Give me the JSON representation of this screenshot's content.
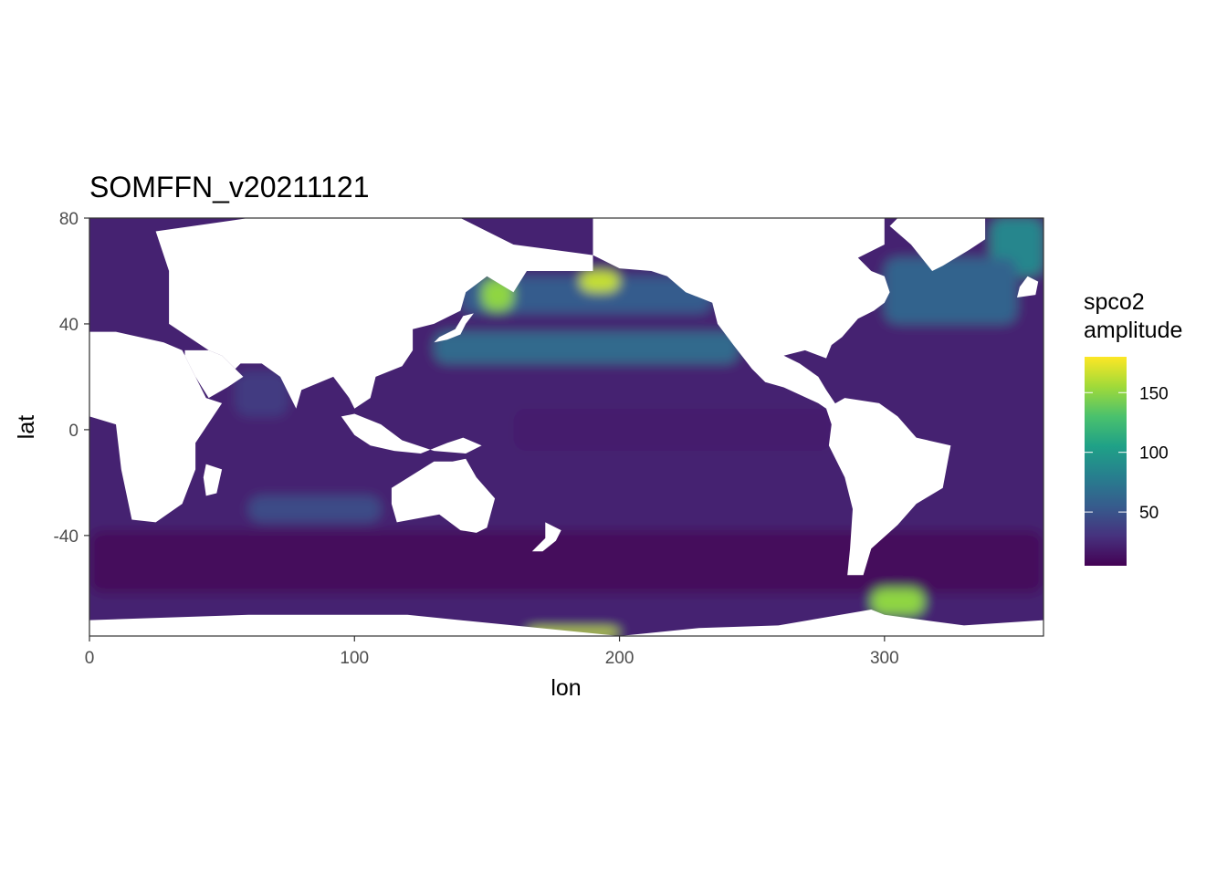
{
  "chart_data": {
    "type": "heatmap",
    "title": "SOMFFN_v20211121",
    "xlabel": "lon",
    "ylabel": "lat",
    "xlim": [
      0,
      360
    ],
    "ylim": [
      -78,
      80
    ],
    "x_ticks": [
      0,
      100,
      200,
      300
    ],
    "y_ticks": [
      -40,
      0,
      40,
      80
    ],
    "grid": true,
    "legend_placement": "right",
    "colorbar": {
      "title_line1": "spco2",
      "title_line2": "amplitude",
      "range": [
        5,
        180
      ],
      "ticks": [
        50,
        100,
        150
      ],
      "colors": [
        "#440154",
        "#46327e",
        "#365c8d",
        "#277f8e",
        "#1fa187",
        "#4ac16d",
        "#a0da39",
        "#fde725"
      ]
    },
    "field_features": [
      {
        "feature": "Southern Ocean band",
        "lon": [
          0,
          360
        ],
        "lat": [
          -62,
          -38
        ],
        "value": 10
      },
      {
        "feature": "North Pacific subtropical band",
        "lon": [
          130,
          245
        ],
        "lat": [
          25,
          37
        ],
        "value": 65
      },
      {
        "feature": "North Pacific subarctic",
        "lon": [
          140,
          235
        ],
        "lat": [
          44,
          58
        ],
        "value": 55
      },
      {
        "feature": "Kamchatka / Okhotsk coast",
        "lon": [
          148,
          160
        ],
        "lat": [
          45,
          57
        ],
        "value": 150
      },
      {
        "feature": "Gulf of Alaska north (Bering)",
        "lon": [
          185,
          200
        ],
        "lat": [
          52,
          60
        ],
        "value": 165
      },
      {
        "feature": "Ross Sea coast",
        "lon": [
          165,
          200
        ],
        "lat": [
          -78,
          -75
        ],
        "value": 165
      },
      {
        "feature": "Patagonian shelf",
        "lon": [
          295,
          315
        ],
        "lat": [
          -70,
          -60
        ],
        "value": 150
      },
      {
        "feature": "Nordic Seas",
        "lon": [
          340,
          360
        ],
        "lat": [
          58,
          80
        ],
        "value": 85
      },
      {
        "feature": "North Atlantic subpolar",
        "lon": [
          300,
          350
        ],
        "lat": [
          40,
          65
        ],
        "value": 60
      },
      {
        "feature": "Arabian Sea",
        "lon": [
          55,
          75
        ],
        "lat": [
          5,
          22
        ],
        "value": 35
      },
      {
        "feature": "South Indian subtropical",
        "lon": [
          60,
          110
        ],
        "lat": [
          -35,
          -25
        ],
        "value": 45
      },
      {
        "feature": "Equatorial Pacific",
        "lon": [
          160,
          280
        ],
        "lat": [
          -8,
          8
        ],
        "value": 20
      }
    ]
  }
}
